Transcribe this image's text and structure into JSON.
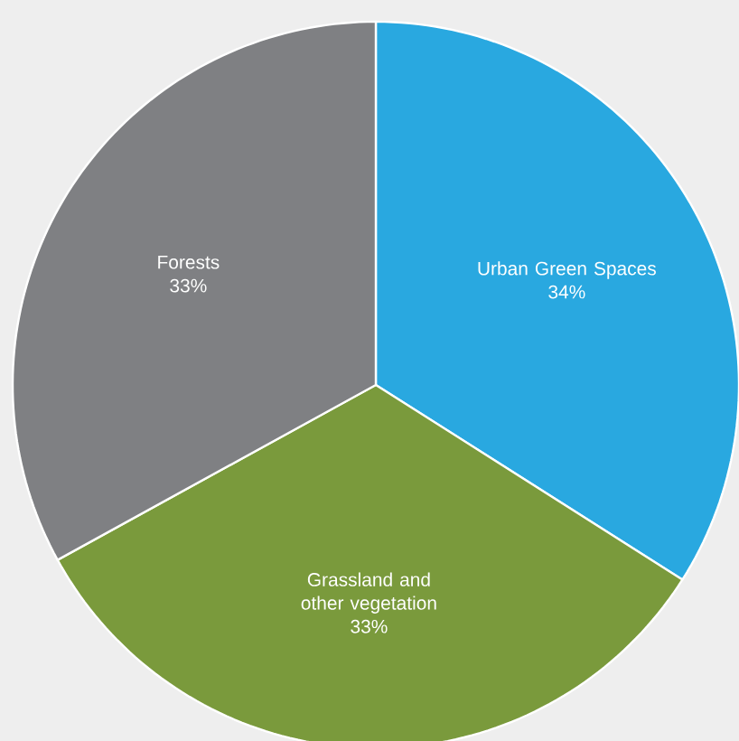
{
  "chart_data": {
    "type": "pie",
    "categories": [
      "Urban Green Spaces",
      "Grassland and other vegetation",
      "Forests"
    ],
    "values": [
      34,
      33,
      33
    ],
    "value_labels": [
      "34%",
      "33%",
      "33%"
    ],
    "colors": [
      "#29a8e0",
      "#7a9a3c",
      "#7f8083"
    ]
  }
}
